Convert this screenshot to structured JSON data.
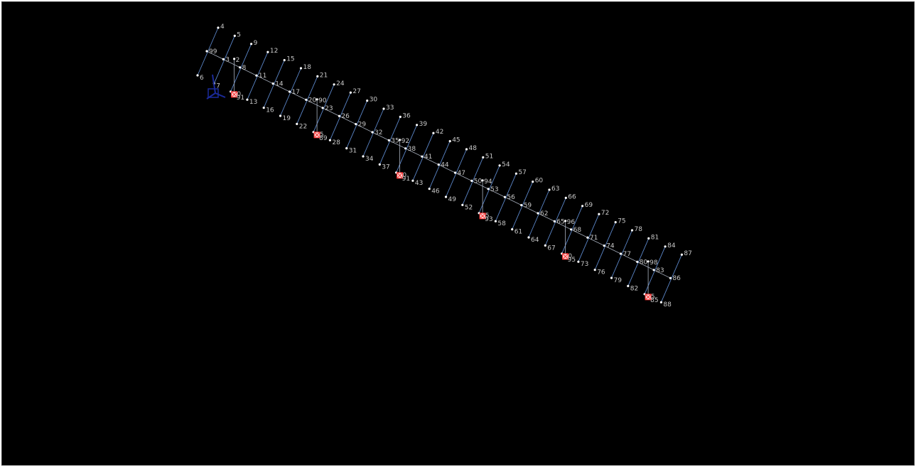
{
  "colors": {
    "background": "#000000",
    "member": "#5b86c8",
    "spine": "#aab2c0",
    "node": "#ffffff",
    "support": "#ff3030",
    "support_fill": "#ffd0d0",
    "axis_triad": "#1a2a9a",
    "label": "#c8c8c8"
  },
  "icons": {
    "axis": "axis-triad-icon",
    "support": "fixed-support-icon"
  },
  "model": {
    "spine_nodes": [
      "99",
      "3",
      "8",
      "11",
      "14",
      "17",
      "20",
      "23",
      "26",
      "29",
      "32",
      "35",
      "38",
      "41",
      "44",
      "47",
      "50",
      "53",
      "56",
      "59",
      "62",
      "65",
      "68",
      "71",
      "74",
      "77",
      "80",
      "83",
      "86"
    ],
    "upper_nodes": [
      "4",
      "5",
      "9",
      "12",
      "15",
      "18",
      "21",
      "24",
      "27",
      "30",
      "33",
      "36",
      "39",
      "42",
      "45",
      "48",
      "51",
      "54",
      "57",
      "60",
      "63",
      "66",
      "69",
      "72",
      "75",
      "78",
      "81",
      "84",
      "87"
    ],
    "lower_nodes": [
      "6",
      "7",
      "10",
      "13",
      "16",
      "19",
      "22",
      "25",
      "28",
      "31",
      "34",
      "37",
      "40",
      "43",
      "46",
      "49",
      "52",
      "55",
      "58",
      "61",
      "64",
      "67",
      "70",
      "73",
      "76",
      "79",
      "82",
      "85",
      "88"
    ],
    "support_posts": [
      {
        "top": "2",
        "bottom": "91"
      },
      {
        "top": "90",
        "bottom": "89"
      },
      {
        "top": "92",
        "bottom": "91"
      },
      {
        "top": "94",
        "bottom": "93"
      },
      {
        "top": "96",
        "bottom": "95"
      },
      {
        "top": "98",
        "bottom": "85"
      }
    ]
  }
}
